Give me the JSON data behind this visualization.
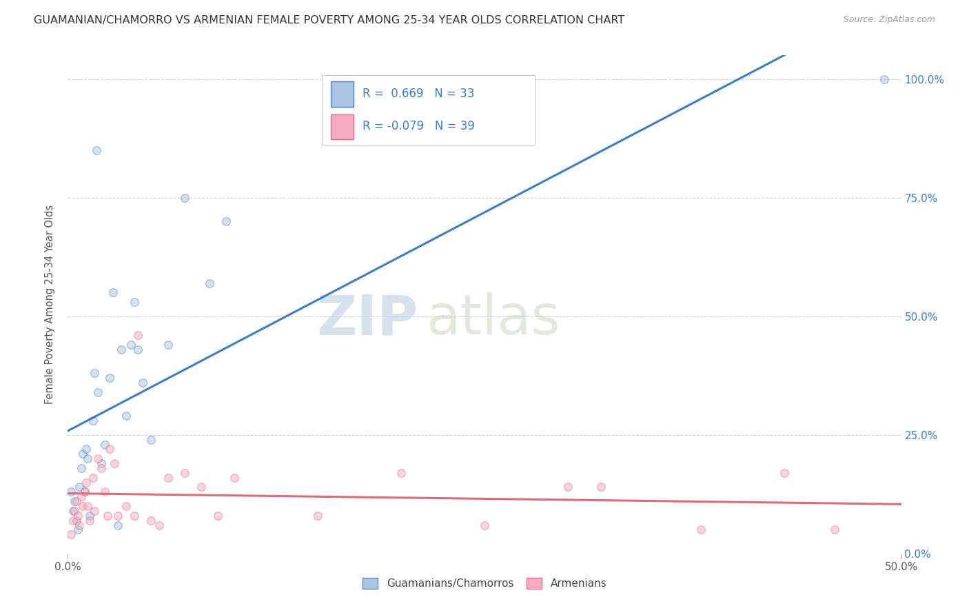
{
  "title": "GUAMANIAN/CHAMORRO VS ARMENIAN FEMALE POVERTY AMONG 25-34 YEAR OLDS CORRELATION CHART",
  "source": "Source: ZipAtlas.com",
  "ylabel": "Female Poverty Among 25-34 Year Olds",
  "xlim": [
    0.0,
    0.5
  ],
  "ylim": [
    0.0,
    1.05
  ],
  "xtick_positions": [
    0.0,
    0.5
  ],
  "xtick_labels": [
    "0.0%",
    "50.0%"
  ],
  "yticks": [
    0.0,
    0.25,
    0.5,
    0.75,
    1.0
  ],
  "ytick_labels": [
    "0.0%",
    "25.0%",
    "50.0%",
    "75.0%",
    "100.0%"
  ],
  "guamanian_color": "#aac4e2",
  "armenian_color": "#f5aabe",
  "line_blue": "#3a7dc9",
  "line_pink": "#e06878",
  "R_guamanian": 0.669,
  "N_guamanian": 33,
  "R_armenian": -0.079,
  "N_armenian": 39,
  "legend_label_guamanian": "Guamanians/Chamorros",
  "legend_label_armenian": "Armenians",
  "guamanian_x": [
    0.002,
    0.003,
    0.004,
    0.005,
    0.006,
    0.007,
    0.008,
    0.009,
    0.01,
    0.011,
    0.012,
    0.013,
    0.015,
    0.016,
    0.017,
    0.018,
    0.02,
    0.022,
    0.025,
    0.027,
    0.03,
    0.032,
    0.035,
    0.038,
    0.04,
    0.042,
    0.045,
    0.05,
    0.06,
    0.07,
    0.085,
    0.095,
    0.49
  ],
  "guamanian_y": [
    0.13,
    0.09,
    0.11,
    0.07,
    0.05,
    0.14,
    0.18,
    0.21,
    0.13,
    0.22,
    0.2,
    0.08,
    0.28,
    0.38,
    0.85,
    0.34,
    0.19,
    0.23,
    0.37,
    0.55,
    0.06,
    0.43,
    0.29,
    0.44,
    0.53,
    0.43,
    0.36,
    0.24,
    0.44,
    0.75,
    0.57,
    0.7,
    1.0
  ],
  "armenian_x": [
    0.002,
    0.003,
    0.004,
    0.005,
    0.006,
    0.007,
    0.008,
    0.009,
    0.01,
    0.011,
    0.012,
    0.013,
    0.015,
    0.016,
    0.018,
    0.02,
    0.022,
    0.024,
    0.025,
    0.028,
    0.03,
    0.035,
    0.04,
    0.042,
    0.05,
    0.055,
    0.06,
    0.07,
    0.08,
    0.09,
    0.1,
    0.15,
    0.2,
    0.25,
    0.3,
    0.32,
    0.38,
    0.43,
    0.46
  ],
  "armenian_y": [
    0.04,
    0.07,
    0.09,
    0.11,
    0.08,
    0.06,
    0.12,
    0.1,
    0.13,
    0.15,
    0.1,
    0.07,
    0.16,
    0.09,
    0.2,
    0.18,
    0.13,
    0.08,
    0.22,
    0.19,
    0.08,
    0.1,
    0.08,
    0.46,
    0.07,
    0.06,
    0.16,
    0.17,
    0.14,
    0.08,
    0.16,
    0.08,
    0.17,
    0.06,
    0.14,
    0.14,
    0.05,
    0.17,
    0.05
  ],
  "watermark_zip": "ZIP",
  "watermark_atlas": "atlas",
  "background_color": "#ffffff",
  "grid_color": "#d0d0d0",
  "marker_size": 70,
  "marker_alpha": 0.5,
  "marker_lw": 0.8
}
